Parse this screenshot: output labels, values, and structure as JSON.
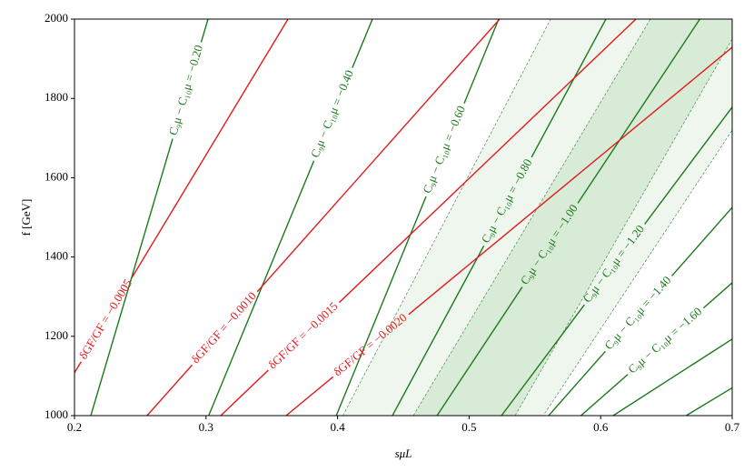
{
  "chart_data": {
    "type": "contour",
    "xlabel": "sμL",
    "ylabel": "f [GeV]",
    "xlim": [
      0.2,
      0.7
    ],
    "ylim": [
      1000,
      2000
    ],
    "xticks": [
      0.2,
      0.3,
      0.4,
      0.5,
      0.6,
      0.7
    ],
    "yticks": [
      1000,
      1200,
      1400,
      1600,
      1800,
      2000
    ],
    "bands": [
      {
        "color": "#eef6ee",
        "x": [
          0.404,
          0.562,
          0.7,
          0.7,
          0.5564
        ],
        "y": [
          1000,
          2000,
          2000,
          1720,
          1000
        ]
      },
      {
        "color": "#d7ebd7",
        "x": [
          0.4576,
          0.6378,
          0.7,
          0.7,
          0.535
        ],
        "y": [
          1000,
          2000,
          2000,
          1950,
          1000
        ]
      }
    ],
    "series": [
      {
        "name": "C₉μ − C₁₀μ = −0.20",
        "color": "#1b7a1b",
        "x": [
          0.2124,
          0.3015
        ],
        "values": [
          1000,
          2000
        ]
      },
      {
        "name": "C₉μ − C₁₀μ = −0.40",
        "color": "#1b7a1b",
        "x": [
          0.302,
          0.4265
        ],
        "values": [
          1000,
          2000
        ]
      },
      {
        "name": "C₉μ − C₁₀μ = −0.60",
        "color": "#1b7a1b",
        "x": [
          0.399,
          0.5225
        ],
        "values": [
          1000,
          2000
        ]
      },
      {
        "name": "C₉μ − C₁₀μ = −0.80",
        "color": "#1b7a1b",
        "x": [
          0.4417,
          0.604
        ],
        "values": [
          1000,
          2000
        ]
      },
      {
        "name": "C₉μ − C₁₀μ = −1.00",
        "color": "#1b7a1b",
        "x": [
          0.4756,
          0.6754
        ],
        "values": [
          1000,
          2000
        ]
      },
      {
        "name": "C₉μ − C₁₀μ = −1.20",
        "color": "#1b7a1b",
        "x": [
          0.5246,
          0.7
        ],
        "values": [
          1000,
          1778
        ]
      },
      {
        "name": "C₉μ − C₁₀μ = −1.40",
        "color": "#1b7a1b",
        "x": [
          0.5605,
          0.7
        ],
        "values": [
          1000,
          1525
        ]
      },
      {
        "name": "C₉μ − C₁₀μ = −1.60",
        "color": "#1b7a1b",
        "x": [
          0.585,
          0.7
        ],
        "values": [
          1000,
          1335
        ]
      },
      {
        "color": "#1b7a1b",
        "x": [
          0.6095,
          0.7
        ],
        "values": [
          1000,
          1193
        ]
      },
      {
        "color": "#1b7a1b",
        "x": [
          0.665,
          0.7
        ],
        "values": [
          1000,
          1070
        ]
      },
      {
        "name": "δGF/GF = −0.0005",
        "color": "#e41a1c",
        "x": [
          0.2,
          0.3623
        ],
        "values": [
          1108,
          2000
        ]
      },
      {
        "name": "δGF/GF = −0.0010",
        "color": "#e41a1c",
        "x": [
          0.2552,
          0.5232
        ],
        "values": [
          1000,
          2000
        ]
      },
      {
        "name": "δGF/GF = −0.0015",
        "color": "#e41a1c",
        "x": [
          0.3112,
          0.6268
        ],
        "values": [
          1000,
          2000
        ]
      },
      {
        "name": "δGF/GF = −0.0020",
        "color": "#e41a1c",
        "x": [
          0.3609,
          0.7
        ],
        "values": [
          1000,
          1929
        ]
      }
    ]
  }
}
